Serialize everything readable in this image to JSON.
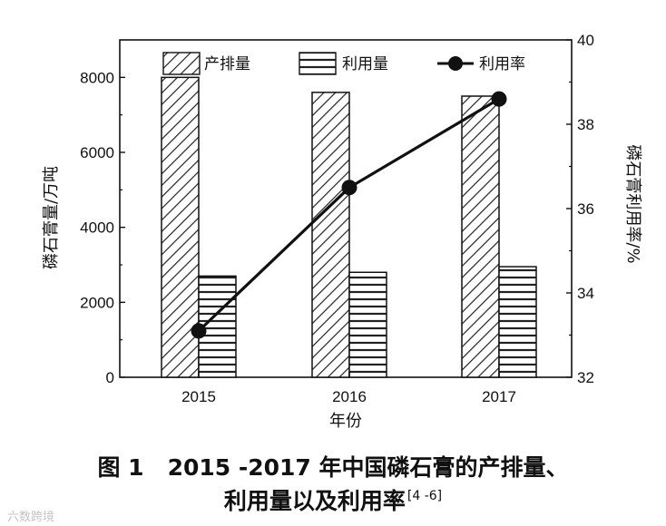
{
  "chart_data": {
    "type": "bar",
    "categories": [
      "2015",
      "2016",
      "2017"
    ],
    "xlabel": "年份",
    "ylabel_left": "磷石膏量/万吨",
    "ylabel_right": "磷石膏利用率/%",
    "ylim_left": [
      0,
      9000
    ],
    "ylim_right": [
      32,
      40
    ],
    "yticks_left": [
      "0",
      "2000",
      "4000",
      "6000",
      "8000"
    ],
    "yticks_right": [
      "32",
      "34",
      "36",
      "38",
      "40"
    ],
    "legend_position": "top",
    "grid": false,
    "series": [
      {
        "name": "产排量",
        "kind": "bar",
        "axis": "left",
        "pattern": "diagonal-hatch",
        "values": [
          8000,
          7600,
          7500
        ]
      },
      {
        "name": "利用量",
        "kind": "bar",
        "axis": "left",
        "pattern": "horizontal-lines",
        "values": [
          2700,
          2800,
          2950
        ]
      },
      {
        "name": "利用率",
        "kind": "line",
        "axis": "right",
        "marker": "filled-circle",
        "values": [
          33.1,
          36.5,
          38.6
        ]
      }
    ]
  },
  "caption": {
    "figure_no": "图 1",
    "line1": "2015 -2017 年中国磷石膏的产排量、",
    "line2": "利用量以及利用率",
    "ref": "[4 -6]"
  },
  "watermark": "六数跨境"
}
